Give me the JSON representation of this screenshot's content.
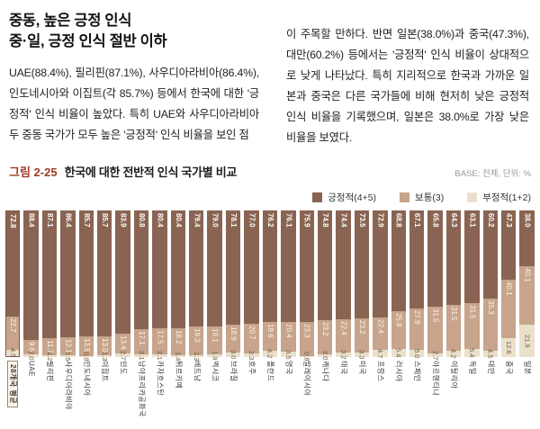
{
  "page": {
    "heading_line1": "중동, 높은 긍정 인식",
    "heading_line2": "중·일, 긍정 인식 절반 이하",
    "left_text": "UAE(88.4%), 필리핀(87.1%), 사우디아라비아(86.4%), 인도네시아와 이집트(각 85.7%) 등에서 한국에 대한 '긍정적' 인식 비율이 높았다. 특히 UAE와 사우디아라비아 두 중동 국가가 모두 높은 '긍정적' 인식 비율을 보인 점",
    "right_text": "이 주목할 만하다. 반면 일본(38.0%)과 중국(47.3%), 대만(60.2%) 등에서는 '긍정적' 인식 비율이 상대적으로 낮게 나타났다. 특히 지리적으로 한국과 가까운 일본과 중국은 다른 국가들에 비해 현저히 낮은 긍정적 인식 비율을 기록했으며, 일본은 38.0%로 가장 낮은 비율을 보였다."
  },
  "figure": {
    "label": "그림 2-25",
    "title": "한국에 대한 전반적 인식 국가별 비교",
    "base_note": "BASE: 전체, 단위: %",
    "legend": [
      {
        "name": "긍정적(4+5)",
        "color": "#8a6452"
      },
      {
        "name": "보통(3)",
        "color": "#c7a48b"
      },
      {
        "name": "부정적(1+2)",
        "color": "#eae0cb"
      }
    ]
  },
  "chart_data": {
    "type": "bar",
    "stacked": true,
    "unit": "%",
    "ylim": [
      0,
      100
    ],
    "legend_position": "top-right",
    "highlight_category": "28개국 평균",
    "categories": [
      "28개국 평균",
      "UAE",
      "필리핀",
      "사우디아라비아",
      "인도네시아",
      "이집트",
      "인도",
      "남아프리카공화국",
      "카자흐스탄",
      "튀르키예",
      "베트남",
      "멕시코",
      "브라질",
      "호주",
      "폴란드",
      "영국",
      "말레이시아",
      "캐나다",
      "태국",
      "미국",
      "프랑스",
      "러시아",
      "스페인",
      "아르헨티나",
      "이탈리아",
      "독일",
      "대만",
      "중국",
      "일본"
    ],
    "series": [
      {
        "name": "긍정적(4+5)",
        "color": "#8a6452",
        "values": [
          72.8,
          88.4,
          87.1,
          86.4,
          85.7,
          85.7,
          83.9,
          80.8,
          80.4,
          80.4,
          79.4,
          79.0,
          78.1,
          77.0,
          76.2,
          76.1,
          75.9,
          74.8,
          74.4,
          73.5,
          72.9,
          68.8,
          67.1,
          65.8,
          64.3,
          63.1,
          60.2,
          47.3,
          38.0
        ]
      },
      {
        "name": "보통(3)",
        "color": "#c7a48b",
        "values": [
          22.7,
          9.6,
          11.7,
          12.1,
          13.5,
          13.0,
          13.4,
          17.1,
          17.5,
          18.2,
          19.3,
          19.1,
          18.9,
          20.7,
          19.6,
          20.4,
          23.3,
          23.2,
          22.4,
          23.2,
          22.4,
          25.8,
          27.9,
          31.5,
          31.5,
          31.5,
          35.3,
          40.1,
          40.1
        ]
      },
      {
        "name": "부정적(1+2)",
        "color": "#eae0cb",
        "values": [
          4.5,
          2.0,
          1.2,
          1.5,
          0.8,
          1.3,
          2.7,
          2.1,
          2.1,
          1.4,
          1.3,
          1.9,
          3.0,
          2.3,
          4.2,
          3.5,
          0.8,
          2.0,
          3.2,
          3.3,
          4.7,
          5.4,
          5.0,
          2.7,
          4.2,
          5.4,
          4.5,
          12.6,
          21.9
        ]
      }
    ]
  }
}
